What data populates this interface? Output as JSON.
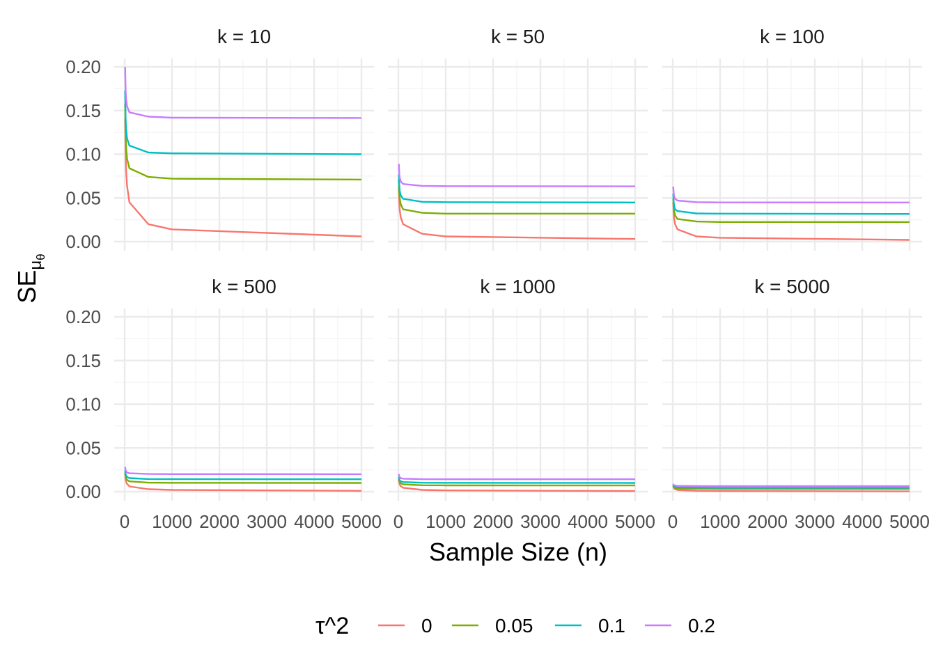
{
  "chart_data": {
    "type": "line",
    "facet_label_prefix": "k = ",
    "facets": [
      {
        "k": 10,
        "label": "k = 10"
      },
      {
        "k": 50,
        "label": "k = 50"
      },
      {
        "k": 100,
        "label": "k = 100"
      },
      {
        "k": 500,
        "label": "k = 500"
      },
      {
        "k": 1000,
        "label": "k = 1000"
      },
      {
        "k": 5000,
        "label": "k = 5000"
      }
    ],
    "x": [
      10,
      20,
      30,
      50,
      100,
      500,
      1000,
      5000
    ],
    "xlabel": "Sample Size (n)",
    "ylabel": "SE",
    "ylabel_subscript": "μ",
    "ylabel_subsubscript": "θ",
    "xlim": [
      0,
      5000
    ],
    "ylim": [
      0,
      0.2
    ],
    "x_ticks": [
      0,
      1000,
      2000,
      3000,
      4000,
      5000
    ],
    "x_tick_labels": [
      "0",
      "1000",
      "2000",
      "3000",
      "4000",
      "5000"
    ],
    "y_ticks": [
      0,
      0.05,
      0.1,
      0.15,
      0.2
    ],
    "y_tick_labels": [
      "0.00",
      "0.05",
      "0.10",
      "0.15",
      "0.20"
    ],
    "grid": true,
    "legend": {
      "position": "bottom",
      "title": "τ^2",
      "entries": [
        "0",
        "0.05",
        "0.1",
        "0.2"
      ]
    },
    "series": [
      {
        "name": "0",
        "color": "#F8766D",
        "values_by_facet": [
          [
            0.141,
            0.101,
            0.083,
            0.064,
            0.045,
            0.02,
            0.014,
            0.006
          ],
          [
            0.063,
            0.044,
            0.036,
            0.028,
            0.02,
            0.009,
            0.006,
            0.003
          ],
          [
            0.045,
            0.032,
            0.026,
            0.02,
            0.014,
            0.006,
            0.0045,
            0.002
          ],
          [
            0.02,
            0.014,
            0.0115,
            0.009,
            0.006,
            0.0028,
            0.002,
            0.0009
          ],
          [
            0.014,
            0.01,
            0.008,
            0.0063,
            0.0045,
            0.002,
            0.0014,
            0.0006
          ],
          [
            0.0063,
            0.0045,
            0.0037,
            0.0028,
            0.002,
            0.0009,
            0.0006,
            0.0003
          ]
        ]
      },
      {
        "name": "0.05",
        "color": "#7CAE00",
        "values_by_facet": [
          [
            0.158,
            0.122,
            0.109,
            0.095,
            0.084,
            0.074,
            0.072,
            0.071
          ],
          [
            0.071,
            0.054,
            0.049,
            0.043,
            0.037,
            0.033,
            0.032,
            0.032
          ],
          [
            0.05,
            0.039,
            0.035,
            0.03,
            0.026,
            0.023,
            0.0225,
            0.0224
          ],
          [
            0.022,
            0.017,
            0.015,
            0.0134,
            0.0118,
            0.0103,
            0.0101,
            0.01
          ],
          [
            0.0158,
            0.0122,
            0.011,
            0.0095,
            0.0084,
            0.0073,
            0.0072,
            0.0071
          ],
          [
            0.0071,
            0.0055,
            0.0049,
            0.0042,
            0.0037,
            0.0033,
            0.0032,
            0.0032
          ]
        ]
      },
      {
        "name": "0.1",
        "color": "#00BFC4",
        "values_by_facet": [
          [
            0.173,
            0.141,
            0.13,
            0.118,
            0.11,
            0.102,
            0.101,
            0.1
          ],
          [
            0.077,
            0.063,
            0.058,
            0.053,
            0.049,
            0.0456,
            0.0452,
            0.0448
          ],
          [
            0.055,
            0.045,
            0.041,
            0.037,
            0.035,
            0.0323,
            0.032,
            0.0317
          ],
          [
            0.0245,
            0.02,
            0.0183,
            0.0167,
            0.0155,
            0.0144,
            0.0143,
            0.0142
          ],
          [
            0.0173,
            0.0141,
            0.0129,
            0.0118,
            0.011,
            0.0102,
            0.0101,
            0.01
          ],
          [
            0.0077,
            0.0063,
            0.0058,
            0.0053,
            0.0049,
            0.0046,
            0.0045,
            0.0045
          ]
        ]
      },
      {
        "name": "0.2",
        "color": "#C77CFF",
        "values_by_facet": [
          [
            0.2,
            0.173,
            0.164,
            0.155,
            0.148,
            0.143,
            0.1418,
            0.1415
          ],
          [
            0.089,
            0.077,
            0.073,
            0.069,
            0.066,
            0.0638,
            0.0635,
            0.0633
          ],
          [
            0.063,
            0.055,
            0.052,
            0.049,
            0.047,
            0.0452,
            0.0449,
            0.0448
          ],
          [
            0.0283,
            0.0245,
            0.0232,
            0.022,
            0.021,
            0.0202,
            0.0201,
            0.02
          ],
          [
            0.02,
            0.0173,
            0.0164,
            0.0155,
            0.0148,
            0.0143,
            0.0142,
            0.0142
          ],
          [
            0.0089,
            0.0077,
            0.0073,
            0.0069,
            0.0066,
            0.0064,
            0.0063,
            0.0063
          ]
        ]
      }
    ]
  }
}
